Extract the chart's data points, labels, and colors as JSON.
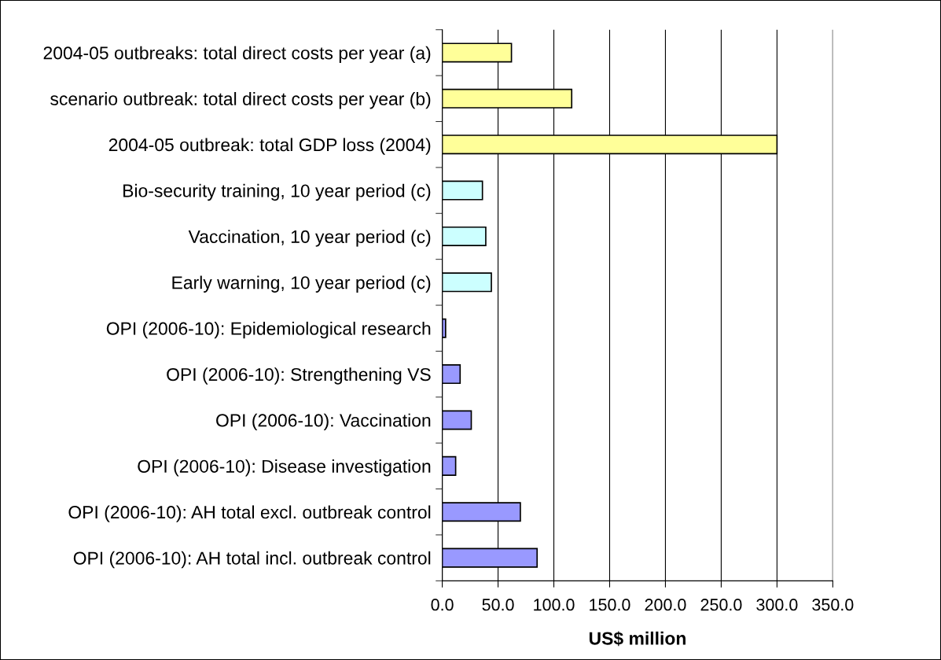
{
  "chart_data": {
    "type": "bar",
    "orientation": "horizontal",
    "xlabel": "US$ million",
    "categories": [
      "2004-05 outbreaks: total direct costs per year (a)",
      "scenario outbreak: total direct costs per year (b)",
      "2004-05 outbreak: total GDP loss (2004)",
      "Bio-security training, 10 year period (c)",
      "Vaccination, 10 year period (c)",
      "Early warning, 10 year period (c)",
      "OPI (2006-10): Epidemiological research",
      "OPI (2006-10): Strengthening VS",
      "OPI (2006-10): Vaccination",
      "OPI (2006-10): Disease investigation",
      "OPI (2006-10): AH total excl. outbreak control",
      "OPI (2006-10): AH total incl. outbreak control"
    ],
    "values": [
      62,
      116,
      300,
      36,
      39,
      44,
      3,
      16,
      26,
      12,
      70,
      85
    ],
    "colors": [
      "#ffff99",
      "#ffff99",
      "#ffff99",
      "#ccffff",
      "#ccffff",
      "#ccffff",
      "#9999ff",
      "#9999ff",
      "#9999ff",
      "#9999ff",
      "#9999ff",
      "#9999ff"
    ],
    "xlim": [
      0,
      350
    ],
    "xticks": [
      {
        "value": 0,
        "label": "0.0"
      },
      {
        "value": 50,
        "label": "50.0"
      },
      {
        "value": 100,
        "label": "100.0"
      },
      {
        "value": 150,
        "label": "150.0"
      },
      {
        "value": 200,
        "label": "200.0"
      },
      {
        "value": 250,
        "label": "250.0"
      },
      {
        "value": 300,
        "label": "300.0"
      },
      {
        "value": 350,
        "label": "350.0"
      }
    ],
    "grid": "x"
  }
}
